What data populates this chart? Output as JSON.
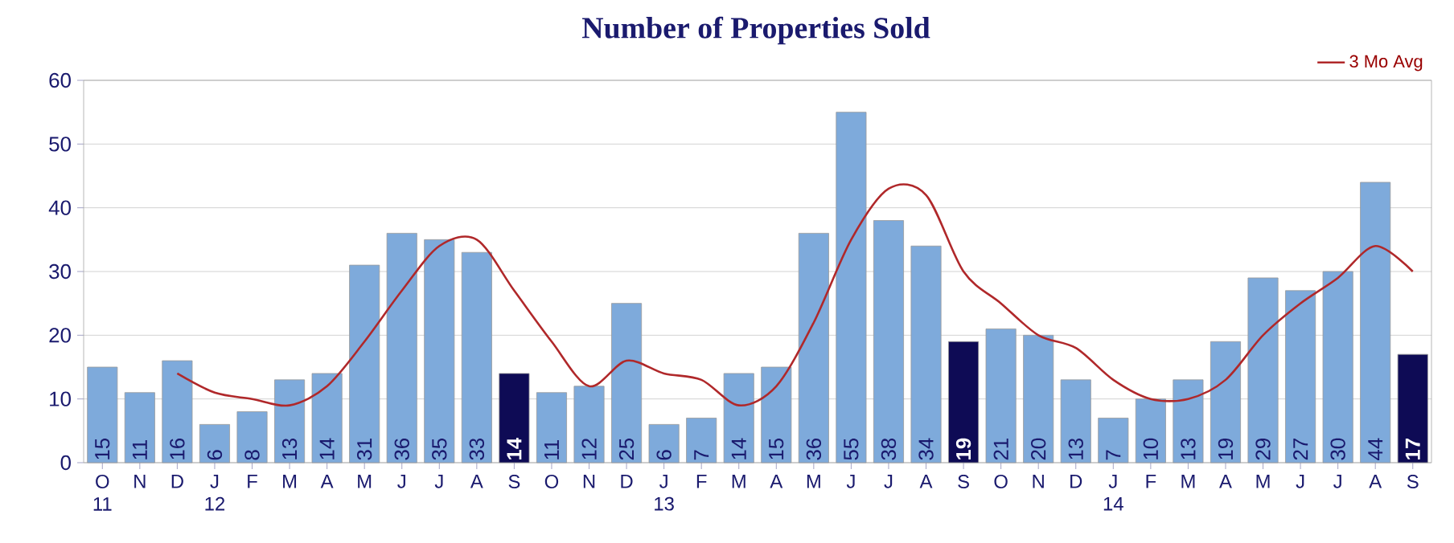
{
  "chart_data": {
    "type": "bar",
    "title": "Number of Properties Sold",
    "categories": [
      "O 11",
      "N",
      "D",
      "J 12",
      "F",
      "M",
      "A",
      "M",
      "J",
      "J",
      "A",
      "S",
      "O",
      "N",
      "D",
      "J 13",
      "F",
      "M",
      "A",
      "M",
      "J",
      "J",
      "A",
      "S",
      "O",
      "N",
      "D",
      "J 14",
      "F",
      "M",
      "A",
      "M",
      "J",
      "J",
      "A",
      "S"
    ],
    "series": [
      {
        "value_labels": [
          "15",
          "11",
          "16",
          "6",
          "8",
          "13",
          "14",
          "31",
          "36",
          "35",
          "33",
          "14",
          "11",
          "12",
          "25",
          "6",
          "7",
          "14",
          "15",
          "36",
          "55",
          "38",
          "34",
          "19",
          "21",
          "20",
          "13",
          "7",
          "10",
          "13",
          "19",
          "29",
          "27",
          "30",
          "44",
          "17"
        ],
        "colors": [
          "#7eaadb",
          "#7eaadb",
          "#7eaadb",
          "#7eaadb",
          "#7eaadb",
          "#7eaadb",
          "#7eaadb",
          "#7eaadb",
          "#7eaadb",
          "#7eaadb",
          "#7eaadb",
          "#0e0b55",
          "#7eaadb",
          "#7eaadb",
          "#7eaadb",
          "#7eaadb",
          "#7eaadb",
          "#7eaadb",
          "#7eaadb",
          "#7eaadb",
          "#7eaadb",
          "#7eaadb",
          "#7eaadb",
          "#0e0b55",
          "#7eaadb",
          "#7eaadb",
          "#7eaadb",
          "#7eaadb",
          "#7eaadb",
          "#7eaadb",
          "#7eaadb",
          "#7eaadb",
          "#7eaadb",
          "#7eaadb",
          "#7eaadb",
          "#0e0b55"
        ],
        "values": [
          15,
          11,
          16,
          6,
          8,
          13,
          14,
          31,
          36,
          35,
          33,
          14,
          11,
          12,
          25,
          6,
          7,
          14,
          15,
          36,
          55,
          38,
          34,
          19,
          21,
          20,
          13,
          7,
          10,
          13,
          19,
          29,
          27,
          30,
          44,
          17
        ]
      },
      {
        "type": "line",
        "name": "3 Mo Avg",
        "color": "#b0282a",
        "values": [
          null,
          null,
          14,
          11,
          10,
          9,
          12,
          19,
          27,
          34,
          35,
          27,
          19,
          12,
          16,
          14,
          13,
          9,
          12,
          22,
          35,
          43,
          42,
          30,
          25,
          20,
          18,
          13,
          10,
          10,
          13,
          20,
          25,
          29,
          34,
          30
        ]
      }
    ],
    "ylim": [
      0,
      60
    ],
    "yticks": [
      0,
      10,
      20,
      30,
      40,
      50,
      60
    ],
    "grid": "y",
    "legend": "top right"
  }
}
